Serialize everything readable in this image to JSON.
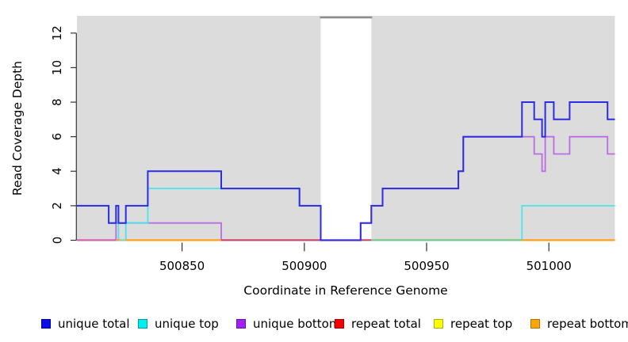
{
  "figure": {
    "xlabel": "Coordinate in Reference Genome",
    "ylabel": "Read Coverage Depth"
  },
  "chart_data": {
    "type": "line",
    "subtype": "step",
    "title": "",
    "xlabel": "Coordinate in Reference Genome",
    "ylabel": "Read Coverage Depth",
    "xlim": [
      500807,
      501027
    ],
    "ylim": [
      0,
      13
    ],
    "x_ticks": [
      500850,
      500900,
      500950,
      501000
    ],
    "y_ticks": [
      0,
      2,
      4,
      6,
      8,
      10,
      12
    ],
    "panel_bg": "#dcdcdc",
    "grid": false,
    "legend_position": "bottom",
    "gap_band": {
      "x0": 500906.7,
      "x1": 500927.4,
      "color": "#ffffff",
      "top_edge_color": "#8e8e8e"
    },
    "series": [
      {
        "name": "repeat total",
        "color": "#e0203a",
        "width": 1.8,
        "steps": [
          [
            500807,
            0
          ],
          [
            501027,
            0
          ]
        ]
      },
      {
        "name": "repeat top",
        "color": "#f0f020",
        "width": 1.8,
        "steps": [
          [
            500807,
            0
          ],
          [
            501027,
            0
          ]
        ]
      },
      {
        "name": "repeat bottom",
        "color": "#ff9e1b",
        "width": 1.8,
        "steps": [
          [
            500807,
            0
          ],
          [
            501027,
            0
          ]
        ]
      },
      {
        "name": "unique bottom",
        "color": "#bb6ce4",
        "width": 1.8,
        "steps": [
          [
            500807,
            0
          ],
          [
            500823,
            1
          ],
          [
            500866,
            0
          ],
          [
            500923,
            1
          ],
          [
            500927.4,
            2
          ],
          [
            500932,
            3
          ],
          [
            500963,
            4
          ],
          [
            500965,
            6
          ],
          [
            500994,
            5
          ],
          [
            500997.2,
            4
          ],
          [
            500998.5,
            6
          ],
          [
            501002,
            5
          ],
          [
            501008.5,
            6
          ],
          [
            501024,
            5
          ],
          [
            501027,
            5
          ]
        ]
      },
      {
        "name": "unique top",
        "color": "#49e4ec",
        "width": 1.8,
        "steps": [
          [
            500807,
            2
          ],
          [
            500820,
            1
          ],
          [
            500824,
            0
          ],
          [
            500827,
            1
          ],
          [
            500836,
            3
          ],
          [
            500898,
            2
          ],
          [
            500906.7,
            0
          ],
          [
            500989,
            2
          ],
          [
            501027,
            2
          ]
        ]
      },
      {
        "name": "unique total",
        "color": "#2c2ce2",
        "width": 2,
        "steps": [
          [
            500807,
            2
          ],
          [
            500820,
            1
          ],
          [
            500823,
            2
          ],
          [
            500824,
            1
          ],
          [
            500827,
            2
          ],
          [
            500836,
            4
          ],
          [
            500866,
            3
          ],
          [
            500898,
            2
          ],
          [
            500906.7,
            0
          ],
          [
            500923,
            1
          ],
          [
            500927.4,
            2
          ],
          [
            500932,
            3
          ],
          [
            500963,
            4
          ],
          [
            500965,
            6
          ],
          [
            500989,
            8
          ],
          [
            500994,
            7
          ],
          [
            500997.2,
            6
          ],
          [
            500998.5,
            8
          ],
          [
            501002,
            7
          ],
          [
            501008.5,
            8
          ],
          [
            501024,
            7
          ],
          [
            501027,
            7
          ]
        ]
      }
    ],
    "baseline_overlays": [
      {
        "x0": 500807,
        "x1": 500823,
        "color": "#d35fb0"
      },
      {
        "x0": 500823,
        "x1": 500824.5,
        "color": "#ff9e1b"
      },
      {
        "x0": 500824.5,
        "x1": 500827,
        "color": "#8bd49c"
      },
      {
        "x0": 500827,
        "x1": 500866,
        "color": "#ff9e1b"
      },
      {
        "x0": 500866,
        "x1": 500927.4,
        "color": "#cf3f6b"
      },
      {
        "x0": 500927.4,
        "x1": 500989,
        "color": "#74c97f"
      },
      {
        "x0": 500989,
        "x1": 501027,
        "color": "#ff9e1b"
      }
    ],
    "legend": {
      "items": [
        {
          "label": "unique total",
          "fill": "#0d0de8",
          "border": "#0000a8"
        },
        {
          "label": "unique top",
          "fill": "#00f0f0",
          "border": "#009aaa"
        },
        {
          "label": "unique bottom",
          "fill": "#a021f0",
          "border": "#6a14a8"
        },
        {
          "label": "repeat total",
          "fill": "#f50000",
          "border": "#a80000"
        },
        {
          "label": "repeat top",
          "fill": "#ffff05",
          "border": "#b0b000"
        },
        {
          "label": "repeat bottom",
          "fill": "#ffa505",
          "border": "#b87400"
        }
      ]
    }
  }
}
